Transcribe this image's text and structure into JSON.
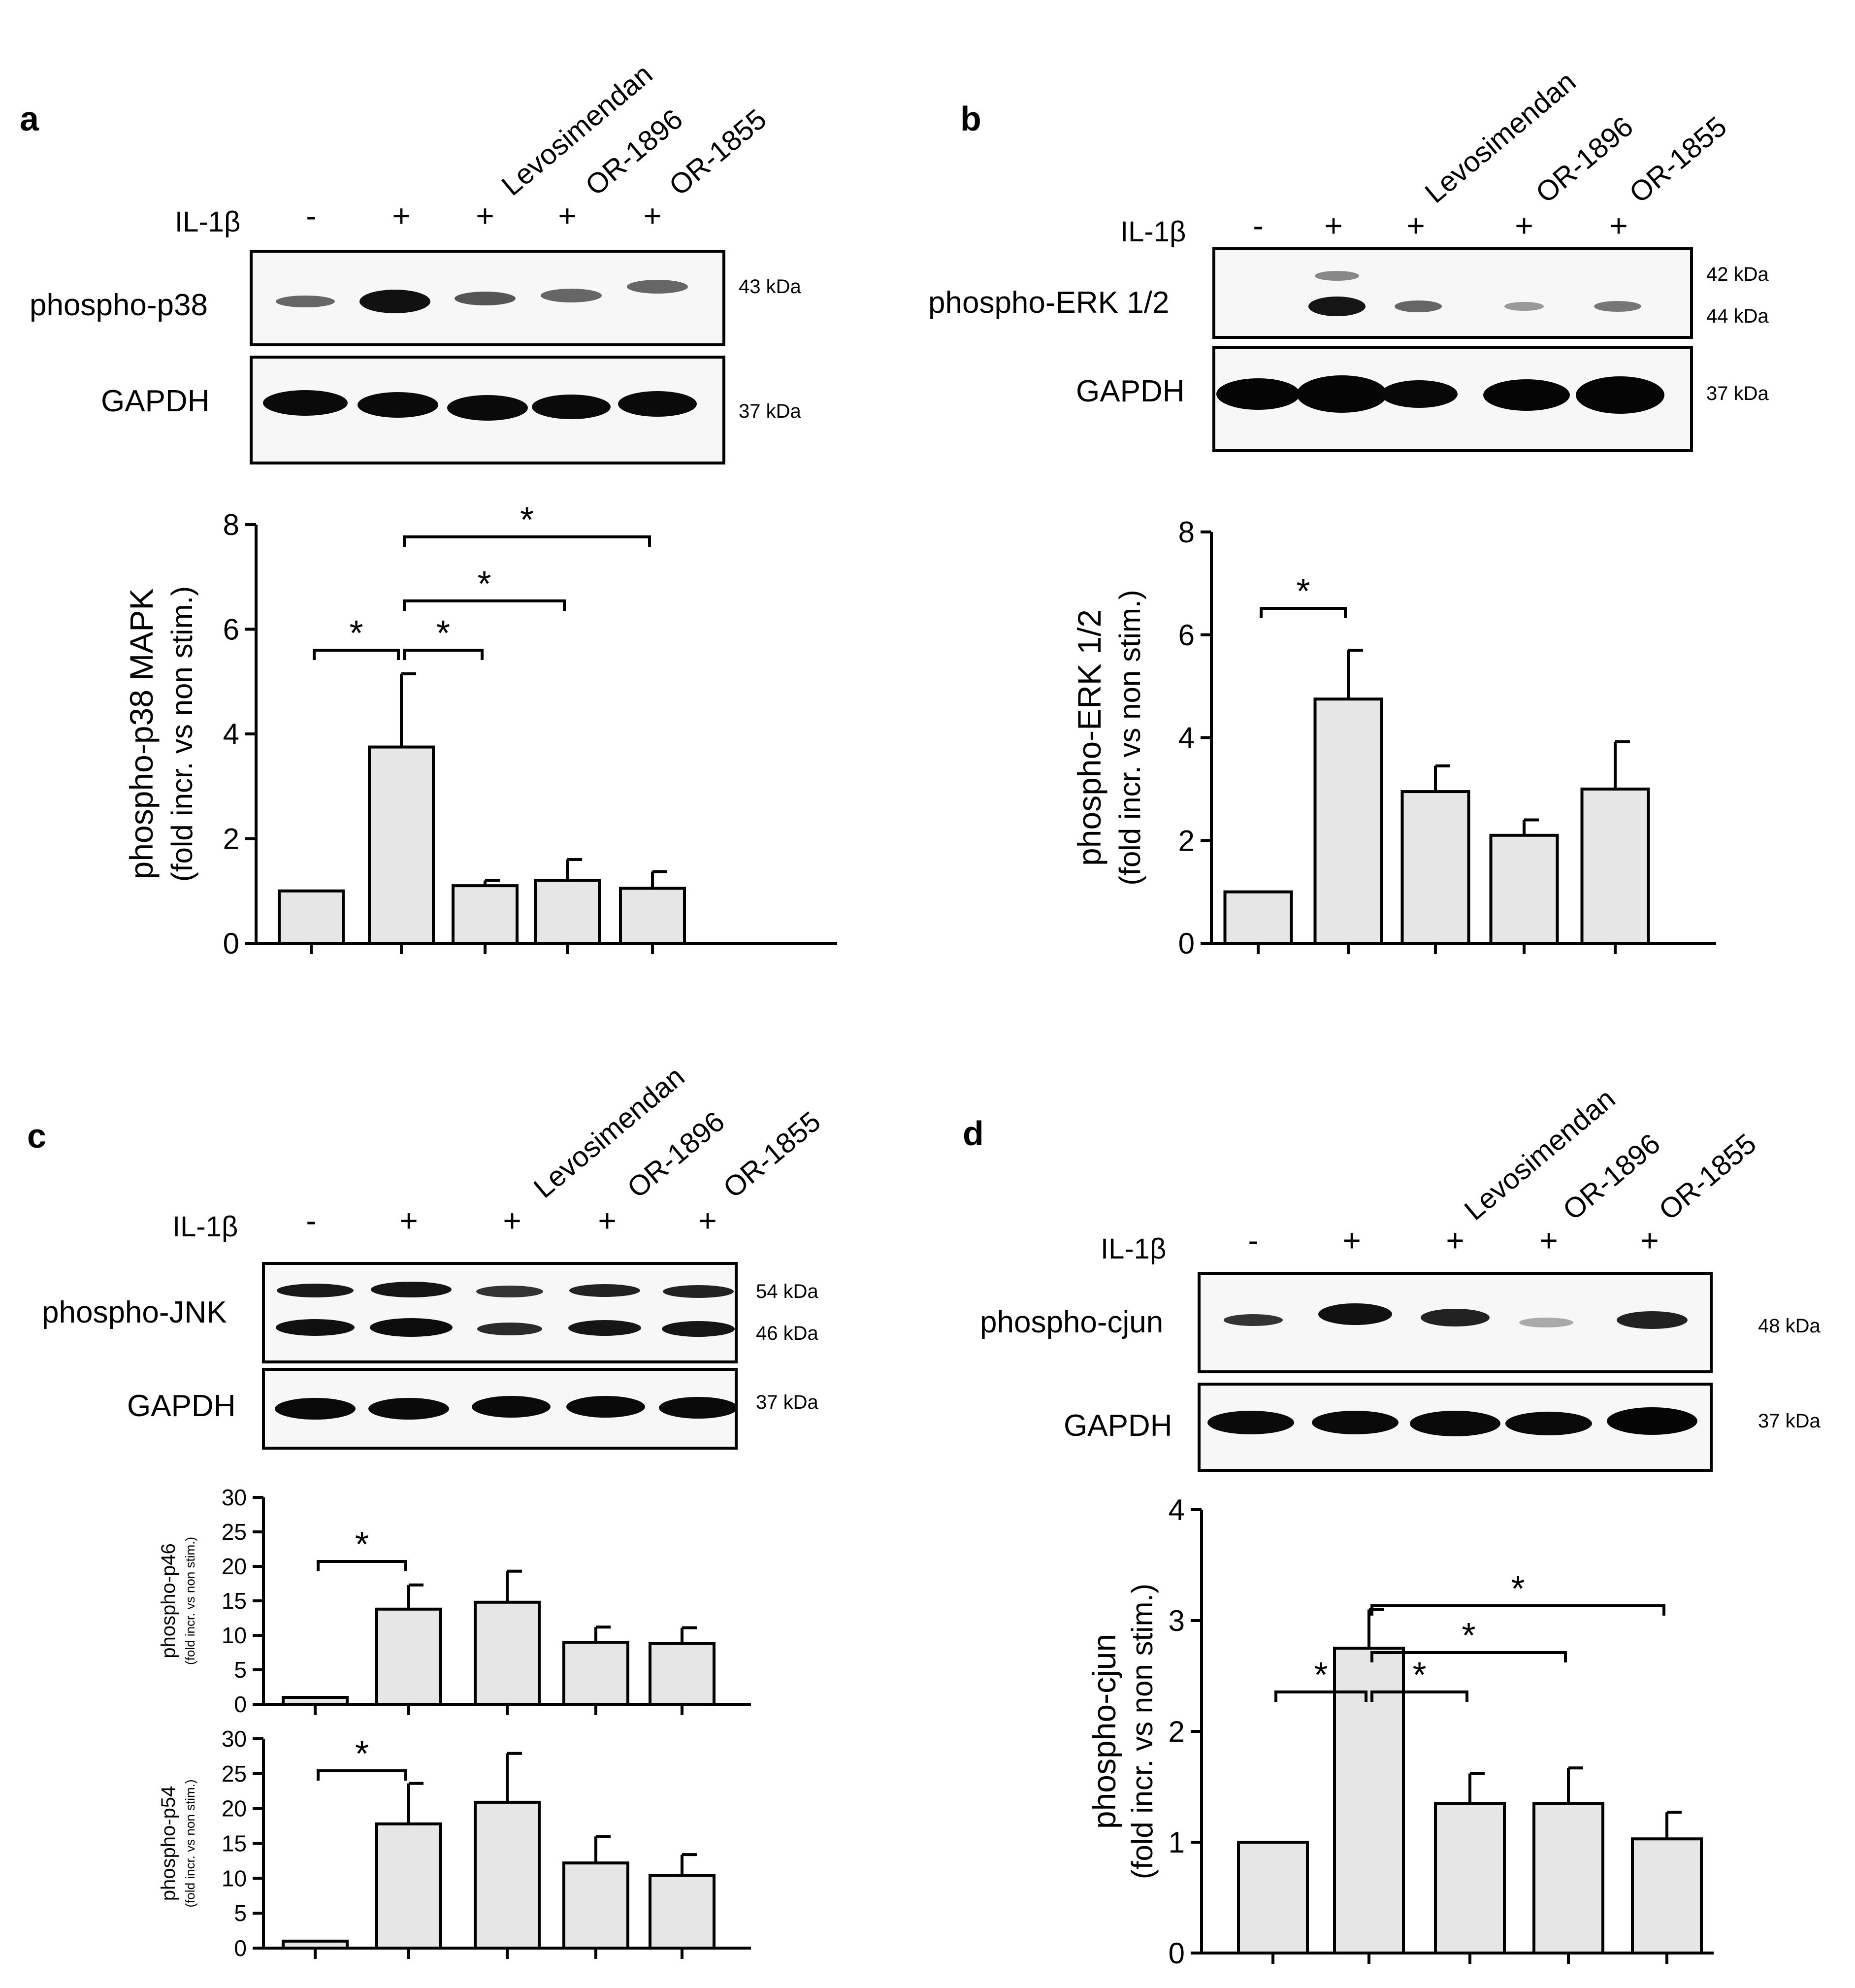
{
  "panels": {
    "a": {
      "letter": "a",
      "treatments": [
        "Levosimendan",
        "OR-1896",
        "OR-1855"
      ],
      "stim_label": "IL-1β",
      "stim_signs": [
        "-",
        "+",
        "+",
        "+",
        "+"
      ],
      "blots": [
        {
          "label": "phospho-p38",
          "kda": [
            "43 kDa"
          ]
        },
        {
          "label": "GAPDH",
          "kda": [
            "37 kDa"
          ]
        }
      ]
    },
    "b": {
      "letter": "b",
      "treatments": [
        "Levosimendan",
        "OR-1896",
        "OR-1855"
      ],
      "stim_label": "IL-1β",
      "stim_signs": [
        "-",
        "+",
        "+",
        "+",
        "+"
      ],
      "blots": [
        {
          "label": "phospho-ERK 1/2",
          "kda": [
            "42 kDa",
            "44 kDa"
          ]
        },
        {
          "label": "GAPDH",
          "kda": [
            "37 kDa"
          ]
        }
      ]
    },
    "c": {
      "letter": "c",
      "treatments": [
        "Levosimendan",
        "OR-1896",
        "OR-1855"
      ],
      "stim_label": "IL-1β",
      "stim_signs": [
        "-",
        "+",
        "+",
        "+",
        "+"
      ],
      "blots": [
        {
          "label": "phospho-JNK",
          "kda": [
            "54 kDa",
            "46 kDa"
          ]
        },
        {
          "label": "GAPDH",
          "kda": [
            "37 kDa"
          ]
        }
      ]
    },
    "d": {
      "letter": "d",
      "treatments": [
        "Levosimendan",
        "OR-1896",
        "OR-1855"
      ],
      "stim_label": "IL-1β",
      "stim_signs": [
        "-",
        "+",
        "+",
        "+",
        "+"
      ],
      "blots": [
        {
          "label": "phospho-cjun",
          "kda": [
            "48 kDa"
          ]
        },
        {
          "label": "GAPDH",
          "kda": [
            "37 kDa"
          ]
        }
      ]
    }
  },
  "chart_data": [
    {
      "id": "a",
      "type": "bar",
      "ylabel": "phospho-p38 MAPK",
      "ylabel2": "(fold incr. vs non stim.)",
      "ylim": [
        0,
        8
      ],
      "yticks": [
        0,
        2,
        4,
        6,
        8
      ],
      "values": [
        1.0,
        3.75,
        1.1,
        1.2,
        1.05
      ],
      "errors": [
        0,
        1.4,
        0.1,
        0.4,
        0.32
      ],
      "significance": [
        {
          "from": 0,
          "to": 1,
          "label": "*"
        },
        {
          "from": 1,
          "to": 2,
          "label": "*"
        },
        {
          "from": 1,
          "to": 3,
          "label": "*"
        },
        {
          "from": 1,
          "to": 4,
          "label": "*"
        }
      ]
    },
    {
      "id": "b",
      "type": "bar",
      "ylabel": "phospho-ERK 1/2",
      "ylabel2": "(fold incr. vs non stim.)",
      "ylim": [
        0,
        8
      ],
      "yticks": [
        0,
        2,
        4,
        6,
        8
      ],
      "values": [
        1.0,
        4.75,
        2.95,
        2.1,
        3.0
      ],
      "errors": [
        0,
        0.95,
        0.5,
        0.3,
        0.92
      ],
      "significance": [
        {
          "from": 0,
          "to": 1,
          "label": "*"
        }
      ]
    },
    {
      "id": "c1",
      "type": "bar",
      "ylabel": "phospho-p46",
      "ylabel2": "(fold incr. vs non stim.)",
      "ylim": [
        0,
        30
      ],
      "yticks": [
        0,
        5,
        10,
        15,
        20,
        25,
        30
      ],
      "values": [
        1.0,
        13.8,
        14.8,
        9.0,
        8.8
      ],
      "errors": [
        0,
        3.5,
        4.5,
        2.2,
        2.3
      ],
      "significance": [
        {
          "from": 0,
          "to": 1,
          "label": "*"
        }
      ]
    },
    {
      "id": "c2",
      "type": "bar",
      "ylabel": "phospho-p54",
      "ylabel2": "(fold incr. vs non stim.)",
      "ylim": [
        0,
        30
      ],
      "yticks": [
        0,
        5,
        10,
        15,
        20,
        25,
        30
      ],
      "values": [
        1.0,
        17.8,
        20.9,
        12.2,
        10.4
      ],
      "errors": [
        0,
        5.8,
        7.0,
        3.8,
        3.0
      ],
      "significance": [
        {
          "from": 0,
          "to": 1,
          "label": "*"
        }
      ]
    },
    {
      "id": "d",
      "type": "bar",
      "ylabel": "phospho-cjun",
      "ylabel2": "(fold incr. vs non stim.)",
      "ylim": [
        0,
        4
      ],
      "yticks": [
        0,
        1,
        2,
        3,
        4
      ],
      "values": [
        1.0,
        2.75,
        1.35,
        1.35,
        1.03
      ],
      "errors": [
        0,
        0.35,
        0.27,
        0.32,
        0.24
      ],
      "significance": [
        {
          "from": 0,
          "to": 1,
          "label": "*"
        },
        {
          "from": 1,
          "to": 2,
          "label": "*"
        },
        {
          "from": 1,
          "to": 3,
          "label": "*"
        },
        {
          "from": 1,
          "to": 4,
          "label": "*"
        }
      ]
    }
  ]
}
